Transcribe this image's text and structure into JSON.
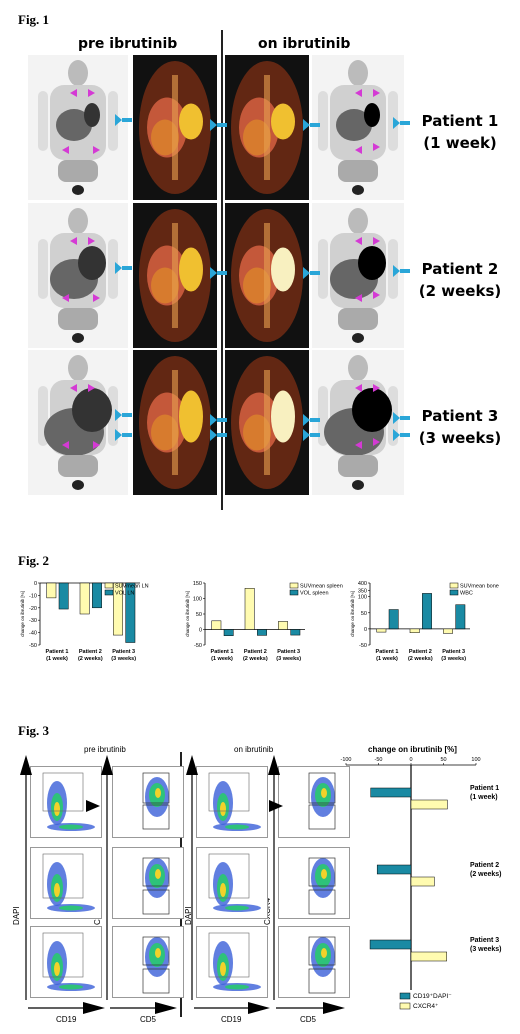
{
  "fig1": {
    "label": "Fig. 1",
    "pre_header": "pre ibrutinib",
    "on_header": "on ibrutinib",
    "patients": [
      {
        "name": "Patient 1",
        "duration": "(1 week)"
      },
      {
        "name": "Patient 2",
        "duration": "(2 weeks)"
      },
      {
        "name": "Patient 3",
        "duration": "(3 weeks)"
      }
    ]
  },
  "fig2": {
    "label": "Fig. 2",
    "ylabel": "change on ibrutinib [%]"
  },
  "fig3": {
    "label": "Fig. 3",
    "pre_header": "pre ibrutinib",
    "on_header": "on ibrutinib",
    "change_header": "change on ibrutinib [%]",
    "axis_dapi": "DAPI",
    "axis_cxcr4": "CXCR4",
    "axis_cd19": "CD19",
    "axis_cd5": "CD5",
    "patients": [
      {
        "name": "Patient 1",
        "duration": "(1 week)"
      },
      {
        "name": "Patient 2",
        "duration": "(2 weeks)"
      },
      {
        "name": "Patient 3",
        "duration": "(3 weeks)"
      }
    ],
    "legend": [
      {
        "label": "CD19⁺DAPI⁻",
        "color": "#1a8aa3"
      },
      {
        "label": "CXCR4⁺",
        "color": "#fffbb0"
      }
    ]
  },
  "chart_data": [
    {
      "type": "bar",
      "categories": [
        "Patient 1\n(1 week)",
        "Patient 2\n(2 weeks)",
        "Patient 3\n(3 weeks)"
      ],
      "series": [
        {
          "name": "SUVmean LN",
          "values": [
            -12,
            -25,
            -42
          ],
          "color": "#fffbb0"
        },
        {
          "name": "VOL LN",
          "values": [
            -21,
            -20,
            -48
          ],
          "color": "#1a8aa3"
        }
      ],
      "ylabel": "change on ibrutinib [%]",
      "ylim": [
        -50,
        0
      ],
      "yticks": [
        0,
        -10,
        -20,
        -30,
        -40,
        -50
      ]
    },
    {
      "type": "bar",
      "categories": [
        "Patient 1\n(1 week)",
        "Patient 2\n(2 weeks)",
        "Patient 3\n(3 weeks)"
      ],
      "series": [
        {
          "name": "SUVmean spleen",
          "values": [
            28,
            133,
            26
          ],
          "color": "#fffbb0"
        },
        {
          "name": "VOL spleen",
          "values": [
            -20,
            -19,
            -18
          ],
          "color": "#1a8aa3"
        }
      ],
      "ylabel": "change on ibrutinib [%]",
      "ylim": [
        -50,
        150
      ],
      "yticks": [
        150,
        100,
        50,
        0,
        -50
      ]
    },
    {
      "type": "bar",
      "categories": [
        "Patient 1\n(1 week)",
        "Patient 2\n(2 weeks)",
        "Patient 3\n(3 weeks)"
      ],
      "series": [
        {
          "name": "SUVmean bone",
          "values": [
            -10,
            -12,
            -14
          ],
          "color": "#fffbb0"
        },
        {
          "name": "WBC",
          "values": [
            60,
            330,
            75
          ],
          "color": "#1a8aa3"
        }
      ],
      "ylabel": "change on ibrutinib [%]",
      "ylim": [
        -50,
        400
      ],
      "yticks": [
        400,
        350,
        100,
        50,
        0,
        -50
      ]
    },
    {
      "type": "bar",
      "orientation": "horizontal",
      "categories": [
        "Patient 1\n(1 week)",
        "Patient 2\n(2 weeks)",
        "Patient 3\n(3 weeks)"
      ],
      "series": [
        {
          "name": "CD19⁺DAPI⁻",
          "values": [
            -62,
            -52,
            -63
          ],
          "color": "#1a8aa3"
        },
        {
          "name": "CXCR4⁺",
          "values": [
            56,
            36,
            55
          ],
          "color": "#fffbb0"
        }
      ],
      "xlabel": "change on ibrutinib [%]",
      "xlim": [
        -100,
        100
      ],
      "xticks": [
        -100,
        -50,
        0,
        50,
        100
      ]
    }
  ]
}
